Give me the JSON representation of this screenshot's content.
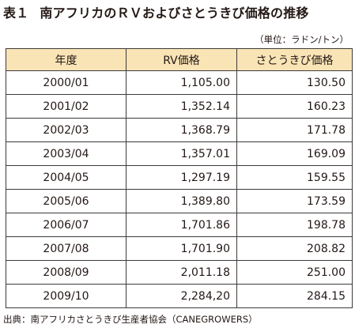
{
  "title": {
    "number": "表１",
    "text": "南アフリカのＲＶおよびさとうきび価格の推移"
  },
  "unit_note": "（単位：ラドン/トン）",
  "table": {
    "headers": [
      "年度",
      "RV価格",
      "さとうきび価格"
    ],
    "rows": [
      {
        "year": "2000/01",
        "rv": "1,105.00",
        "cane": "130.50"
      },
      {
        "year": "2001/02",
        "rv": "1,352.14",
        "cane": "160.23"
      },
      {
        "year": "2002/03",
        "rv": "1,368.79",
        "cane": "171.78"
      },
      {
        "year": "2003/04",
        "rv": "1,357.01",
        "cane": "169.09"
      },
      {
        "year": "2004/05",
        "rv": "1,297.19",
        "cane": "159.55"
      },
      {
        "year": "2005/06",
        "rv": "1,389.80",
        "cane": "173.59"
      },
      {
        "year": "2006/07",
        "rv": "1,701.86",
        "cane": "198.78"
      },
      {
        "year": "2007/08",
        "rv": "1,701.90",
        "cane": "208.82"
      },
      {
        "year": "2008/09",
        "rv": "2,011.18",
        "cane": "251.00"
      },
      {
        "year": "2009/10",
        "rv": "2,284,20",
        "cane": "284.15"
      }
    ]
  },
  "source": "出典：南アフリカさとうきび生産者協会（CANEGROWERS）"
}
